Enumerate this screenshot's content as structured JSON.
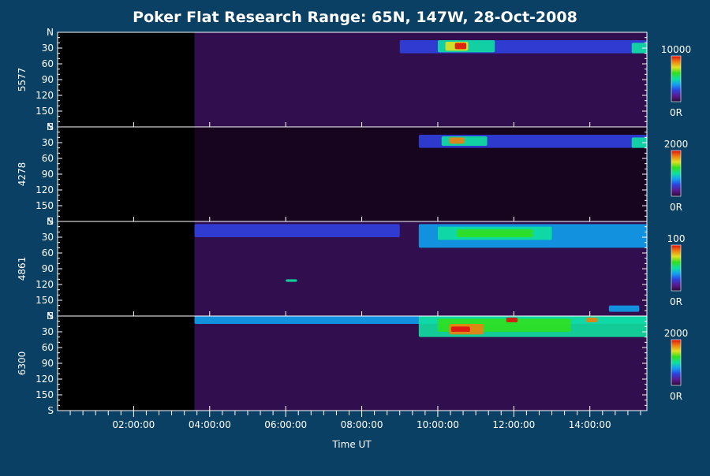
{
  "chart_data": {
    "type": "heatmap",
    "title": "Poker Flat Research Range: 65N, 147W, 28-Oct-2008",
    "xlabel": "Time UT",
    "x_ticks": [
      "02:00:00",
      "04:00:00",
      "06:00:00",
      "08:00:00",
      "10:00:00",
      "12:00:00",
      "14:00:00"
    ],
    "x_tick_hours": [
      2,
      4,
      6,
      8,
      10,
      12,
      14
    ],
    "x_range_hours": [
      0,
      15.5
    ],
    "y_ticks": [
      "N",
      "30",
      "60",
      "90",
      "120",
      "150",
      "S"
    ],
    "y_tick_values": [
      0,
      30,
      60,
      90,
      120,
      150,
      180
    ],
    "colorscale": [
      "#2a0a3a",
      "#5a1a8e",
      "#3040e0",
      "#10a0f0",
      "#10e0a0",
      "#30e020",
      "#e0e020",
      "#f08010",
      "#e01010"
    ],
    "panels": [
      {
        "ylabel": "5577",
        "cbar_max": "10000",
        "cbar_min": "0R",
        "data_start_hour": 3.6,
        "background_level": 0.07,
        "bands": [
          {
            "t0": 9.0,
            "t1": 15.5,
            "a0": 15,
            "a1": 40,
            "level": 0.22
          },
          {
            "t0": 10.0,
            "t1": 11.5,
            "a0": 15,
            "a1": 38,
            "level": 0.45
          },
          {
            "t0": 10.2,
            "t1": 10.8,
            "a0": 18,
            "a1": 35,
            "level": 0.75
          },
          {
            "t0": 10.45,
            "t1": 10.75,
            "a0": 20,
            "a1": 32,
            "level": 1.0
          },
          {
            "t0": 15.1,
            "t1": 15.5,
            "a0": 20,
            "a1": 40,
            "level": 0.5
          }
        ]
      },
      {
        "ylabel": "4278",
        "cbar_max": "2000",
        "cbar_min": "0R",
        "data_start_hour": 3.6,
        "background_level": 0.06,
        "bands": [
          {
            "t0": 9.5,
            "t1": 15.5,
            "a0": 15,
            "a1": 40,
            "level": 0.2
          },
          {
            "t0": 10.1,
            "t1": 11.3,
            "a0": 18,
            "a1": 36,
            "level": 0.5
          },
          {
            "t0": 10.3,
            "t1": 10.7,
            "a0": 20,
            "a1": 32,
            "level": 0.9
          },
          {
            "t0": 15.1,
            "t1": 15.5,
            "a0": 20,
            "a1": 40,
            "level": 0.5
          }
        ]
      },
      {
        "ylabel": "4861",
        "cbar_max": "100",
        "cbar_min": "0R",
        "data_start_hour": 3.6,
        "background_level": 0.1,
        "bands": [
          {
            "t0": 3.6,
            "t1": 9.0,
            "a0": 5,
            "a1": 30,
            "level": 0.25
          },
          {
            "t0": 9.5,
            "t1": 15.5,
            "a0": 5,
            "a1": 50,
            "level": 0.35
          },
          {
            "t0": 10.0,
            "t1": 13.0,
            "a0": 10,
            "a1": 35,
            "level": 0.55
          },
          {
            "t0": 10.5,
            "t1": 12.5,
            "a0": 15,
            "a1": 30,
            "level": 0.65
          },
          {
            "t0": 6.0,
            "t1": 6.3,
            "a0": 110,
            "a1": 115,
            "level": 0.45
          },
          {
            "t0": 14.5,
            "t1": 15.3,
            "a0": 160,
            "a1": 172,
            "level": 0.35
          }
        ]
      },
      {
        "ylabel": "6300",
        "cbar_max": "2000",
        "cbar_min": "0R",
        "data_start_hour": 3.6,
        "background_level": 0.18,
        "bands": [
          {
            "t0": 3.6,
            "t1": 15.5,
            "a0": 0,
            "a1": 15,
            "level": 0.4
          },
          {
            "t0": 9.5,
            "t1": 15.5,
            "a0": 0,
            "a1": 40,
            "level": 0.45
          },
          {
            "t0": 10.0,
            "t1": 13.5,
            "a0": 5,
            "a1": 30,
            "level": 0.6
          },
          {
            "t0": 10.3,
            "t1": 11.2,
            "a0": 15,
            "a1": 35,
            "level": 0.85
          },
          {
            "t0": 10.35,
            "t1": 10.85,
            "a0": 20,
            "a1": 30,
            "level": 1.0
          },
          {
            "t0": 11.8,
            "t1": 12.1,
            "a0": 3,
            "a1": 12,
            "level": 0.95
          },
          {
            "t0": 13.9,
            "t1": 14.2,
            "a0": 3,
            "a1": 12,
            "level": 0.9
          }
        ]
      }
    ]
  }
}
